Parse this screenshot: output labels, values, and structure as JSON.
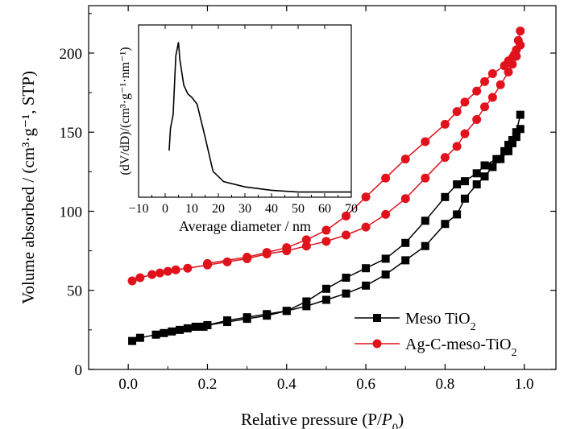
{
  "chart_data": [
    {
      "type": "line",
      "xlabel": "Relative pressure (P/P0)",
      "ylabel": "Volume absorbed / (cm³·g⁻¹, STP)",
      "xlim": [
        -0.1,
        1.08
      ],
      "ylim": [
        0,
        230
      ],
      "x_ticks": [
        0.0,
        0.2,
        0.4,
        0.6,
        0.8,
        1.0
      ],
      "x_tick_labels": [
        "0.0",
        "0.2",
        "0.4",
        "0.6",
        "0.8",
        "1.0"
      ],
      "y_ticks": [
        0,
        50,
        100,
        150,
        200
      ],
      "y_tick_labels": [
        "0",
        "50",
        "100",
        "150",
        "200"
      ],
      "legend_position": "bottom-right",
      "series": [
        {
          "name": "Meso TiO2",
          "color": "#000000",
          "marker": "square",
          "adsorption": [
            [
              0.01,
              18
            ],
            [
              0.03,
              20
            ],
            [
              0.07,
              22
            ],
            [
              0.09,
              23
            ],
            [
              0.11,
              24
            ],
            [
              0.13,
              25
            ],
            [
              0.15,
              26
            ],
            [
              0.17,
              27
            ],
            [
              0.19,
              27
            ],
            [
              0.2,
              28
            ],
            [
              0.25,
              30
            ],
            [
              0.3,
              32
            ],
            [
              0.35,
              34
            ],
            [
              0.4,
              37
            ],
            [
              0.45,
              40
            ],
            [
              0.5,
              44
            ],
            [
              0.55,
              48
            ],
            [
              0.6,
              53
            ],
            [
              0.65,
              60
            ],
            [
              0.7,
              69
            ],
            [
              0.75,
              78
            ],
            [
              0.8,
              92
            ],
            [
              0.83,
              98
            ],
            [
              0.85,
              108
            ],
            [
              0.88,
              117
            ],
            [
              0.9,
              122
            ],
            [
              0.92,
              128
            ],
            [
              0.94,
              133
            ],
            [
              0.96,
              138
            ],
            [
              0.97,
              143
            ],
            [
              0.98,
              147
            ],
            [
              0.99,
              152
            ]
          ],
          "desorption": [
            [
              0.99,
              161
            ],
            [
              0.98,
              150
            ],
            [
              0.97,
              145
            ],
            [
              0.96,
              142
            ],
            [
              0.95,
              138
            ],
            [
              0.93,
              133
            ],
            [
              0.9,
              129
            ],
            [
              0.88,
              124
            ],
            [
              0.85,
              119
            ],
            [
              0.83,
              117
            ],
            [
              0.8,
              109
            ],
            [
              0.75,
              94
            ],
            [
              0.7,
              80
            ],
            [
              0.65,
              70
            ],
            [
              0.6,
              64
            ],
            [
              0.55,
              58
            ],
            [
              0.5,
              51
            ],
            [
              0.45,
              43
            ],
            [
              0.4,
              37
            ],
            [
              0.35,
              35
            ],
            [
              0.3,
              33
            ],
            [
              0.25,
              31
            ],
            [
              0.2,
              28
            ]
          ]
        },
        {
          "name": "Ag-C-meso-TiO2",
          "color": "#e0121c",
          "marker": "circle",
          "adsorption": [
            [
              0.01,
              56
            ],
            [
              0.03,
              58
            ],
            [
              0.06,
              60
            ],
            [
              0.08,
              61
            ],
            [
              0.1,
              62
            ],
            [
              0.12,
              63
            ],
            [
              0.15,
              64
            ],
            [
              0.2,
              66
            ],
            [
              0.25,
              68
            ],
            [
              0.3,
              70
            ],
            [
              0.35,
              73
            ],
            [
              0.4,
              75
            ],
            [
              0.45,
              78
            ],
            [
              0.5,
              81
            ],
            [
              0.55,
              85
            ],
            [
              0.6,
              90
            ],
            [
              0.65,
              98
            ],
            [
              0.7,
              108
            ],
            [
              0.75,
              121
            ],
            [
              0.8,
              134
            ],
            [
              0.83,
              141
            ],
            [
              0.85,
              149
            ],
            [
              0.88,
              158
            ],
            [
              0.9,
              166
            ],
            [
              0.92,
              172
            ],
            [
              0.94,
              180
            ],
            [
              0.96,
              188
            ],
            [
              0.97,
              193
            ],
            [
              0.98,
              198
            ],
            [
              0.99,
              205
            ]
          ],
          "desorption": [
            [
              0.99,
              214
            ],
            [
              0.985,
              208
            ],
            [
              0.98,
              202
            ],
            [
              0.975,
              199
            ],
            [
              0.97,
              197
            ],
            [
              0.96,
              195
            ],
            [
              0.95,
              192
            ],
            [
              0.92,
              187
            ],
            [
              0.9,
              182
            ],
            [
              0.88,
              176
            ],
            [
              0.85,
              169
            ],
            [
              0.83,
              163
            ],
            [
              0.8,
              155
            ],
            [
              0.75,
              144
            ],
            [
              0.7,
              133
            ],
            [
              0.65,
              121
            ],
            [
              0.6,
              109
            ],
            [
              0.55,
              97
            ],
            [
              0.5,
              88
            ],
            [
              0.45,
              82
            ],
            [
              0.4,
              77
            ],
            [
              0.35,
              74
            ],
            [
              0.3,
              71
            ],
            [
              0.2,
              67
            ]
          ]
        }
      ]
    },
    {
      "type": "line",
      "xlabel": "Average diameter / nm",
      "ylabel": "(dV/dD)/(cm³·g⁻¹·nm⁻¹)",
      "xlim": [
        -10,
        70
      ],
      "x_ticks": [
        -10,
        0,
        10,
        20,
        30,
        40,
        50,
        60,
        70
      ],
      "x_tick_labels": [
        "−10",
        "0",
        "10",
        "20",
        "30",
        "40",
        "50",
        "60",
        "70"
      ],
      "y_tick_labels": [],
      "ylim": [
        0,
        1
      ],
      "series": [
        {
          "color": "#000000",
          "points": [
            [
              1.5,
              0.27
            ],
            [
              2,
              0.4
            ],
            [
              3,
              0.48
            ],
            [
              4,
              0.82
            ],
            [
              5,
              0.9
            ],
            [
              5.5,
              0.8
            ],
            [
              7,
              0.65
            ],
            [
              8.5,
              0.6
            ],
            [
              10,
              0.58
            ],
            [
              12,
              0.54
            ],
            [
              15,
              0.35
            ],
            [
              18,
              0.15
            ],
            [
              22,
              0.09
            ],
            [
              30,
              0.06
            ],
            [
              40,
              0.04
            ],
            [
              50,
              0.03
            ],
            [
              70,
              0.03
            ]
          ]
        }
      ]
    }
  ]
}
